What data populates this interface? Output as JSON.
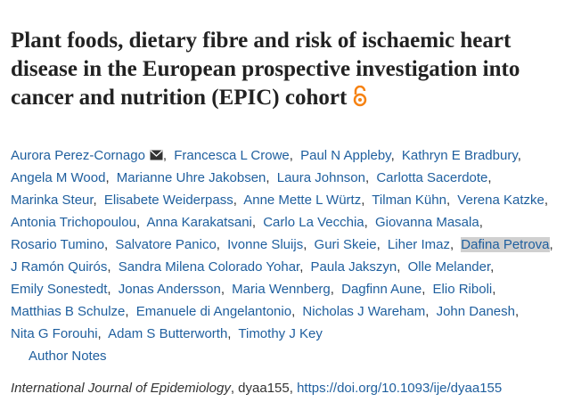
{
  "article": {
    "title": "Plant foods, dietary fibre and risk of ischaemic heart disease in the European prospective investigation into cancer and nutrition (EPIC) cohort",
    "author_separator": ",",
    "authors": [
      "Aurora Perez-Cornago",
      "Francesca L Crowe",
      "Paul N Appleby",
      "Kathryn E Bradbury",
      "Angela M Wood",
      "Marianne Uhre Jakobsen",
      "Laura Johnson",
      "Carlotta Sacerdote",
      "Marinka Steur",
      "Elisabete Weiderpass",
      "Anne Mette L Würtz",
      "Tilman Kühn",
      "Verena Katzke",
      "Antonia Trichopoulou",
      "Anna Karakatsani",
      "Carlo La Vecchia",
      "Giovanna Masala",
      "Rosario Tumino",
      "Salvatore Panico",
      "Ivonne Sluijs",
      "Guri Skeie",
      "Liher Imaz",
      "Dafina Petrova",
      "J Ramón Quirós",
      "Sandra Milena Colorado Yohar",
      "Paula Jakszyn",
      "Olle Melander",
      "Emily Sonestedt",
      "Jonas Andersson",
      "Maria Wennberg",
      "Dagfinn Aune",
      "Elio Riboli",
      "Matthias B Schulze",
      "Emanuele di Angelantonio",
      "Nicholas J Wareham",
      "John Danesh",
      "Nita G Forouhi",
      "Adam S Butterworth",
      "Timothy J Key"
    ],
    "author_notes": "Author Notes",
    "journal": "International Journal of Epidemiology",
    "citation_rest": ", dyaa155,",
    "doi": "https://doi.org/10.1093/ije/dyaa155"
  }
}
